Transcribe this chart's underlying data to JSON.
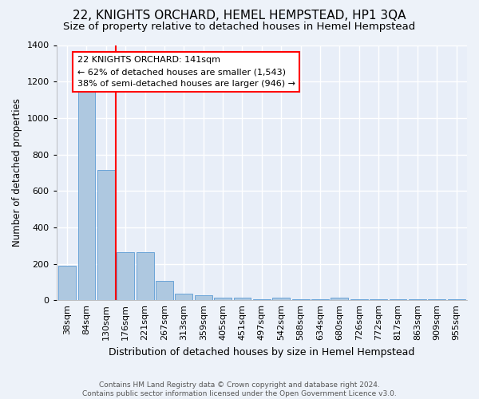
{
  "title": "22, KNIGHTS ORCHARD, HEMEL HEMPSTEAD, HP1 3QA",
  "subtitle": "Size of property relative to detached houses in Hemel Hempstead",
  "xlabel": "Distribution of detached houses by size in Hemel Hempstead",
  "ylabel": "Number of detached properties",
  "footer_line1": "Contains HM Land Registry data © Crown copyright and database right 2024.",
  "footer_line2": "Contains public sector information licensed under the Open Government Licence v3.0.",
  "bar_labels": [
    "38sqm",
    "84sqm",
    "130sqm",
    "176sqm",
    "221sqm",
    "267sqm",
    "313sqm",
    "359sqm",
    "405sqm",
    "451sqm",
    "497sqm",
    "542sqm",
    "588sqm",
    "634sqm",
    "680sqm",
    "726sqm",
    "772sqm",
    "817sqm",
    "863sqm",
    "909sqm",
    "955sqm"
  ],
  "bar_values": [
    190,
    1145,
    715,
    265,
    265,
    105,
    35,
    28,
    15,
    12,
    5,
    15,
    5,
    5,
    15,
    5,
    5,
    5,
    5,
    5,
    5
  ],
  "ylim": [
    0,
    1400
  ],
  "yticks": [
    0,
    200,
    400,
    600,
    800,
    1000,
    1200,
    1400
  ],
  "bar_color": "#aec8e0",
  "bar_edge_color": "#5b9bd5",
  "red_line_x": 2.5,
  "annotation_box_text": "22 KNIGHTS ORCHARD: 141sqm\n← 62% of detached houses are smaller (1,543)\n38% of semi-detached houses are larger (946) →",
  "bg_color": "#edf2f9",
  "plot_bg_color": "#e8eef8",
  "grid_color": "#d0d8e8",
  "title_fontsize": 11,
  "subtitle_fontsize": 9.5,
  "ylabel_fontsize": 8.5,
  "xlabel_fontsize": 9,
  "tick_fontsize": 8,
  "annotation_fontsize": 8
}
